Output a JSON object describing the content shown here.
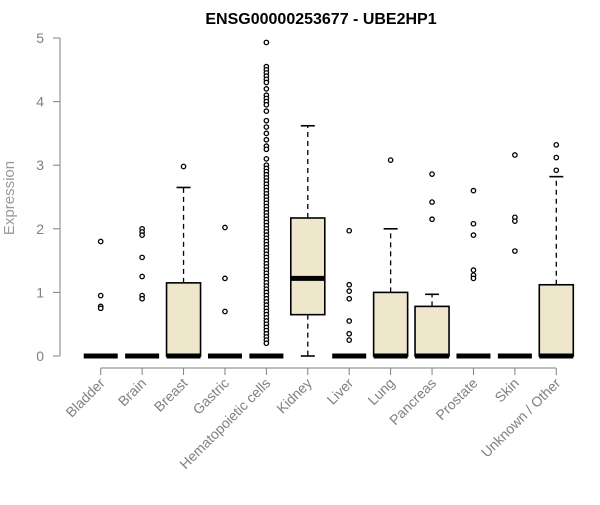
{
  "chart_data": {
    "type": "box",
    "title": "ENSG00000253677 - UBE2HP1",
    "xlabel": "",
    "ylabel": "Expression",
    "ylim": [
      0,
      5
    ],
    "yticks": [
      "0",
      "1",
      "2",
      "3",
      "4",
      "5"
    ],
    "grid": false,
    "legend": "none",
    "colors": {
      "box_fill": "#efe7cb",
      "stroke": "#000000",
      "axis": "#808080"
    },
    "categories": [
      "Bladder",
      "Brain",
      "Breast",
      "Gastric",
      "Hematopoietic cells",
      "Kidney",
      "Liver",
      "Lung",
      "Pancreas",
      "Prostate",
      "Skin",
      "Unknown / Other"
    ],
    "boxes": [
      {
        "q1": 0,
        "median": 0,
        "q3": 0,
        "whisker_low": 0,
        "whisker_high": 0,
        "outliers": [
          1.8,
          0.95,
          0.78,
          0.75
        ]
      },
      {
        "q1": 0,
        "median": 0,
        "q3": 0,
        "whisker_low": 0,
        "whisker_high": 0,
        "outliers": [
          2.0,
          1.95,
          1.9,
          1.55,
          1.25,
          0.95,
          0.9
        ]
      },
      {
        "q1": 0,
        "median": 0,
        "q3": 1.15,
        "whisker_low": 0,
        "whisker_high": 2.65,
        "outliers": [
          2.98
        ]
      },
      {
        "q1": 0,
        "median": 0,
        "q3": 0,
        "whisker_low": 0,
        "whisker_high": 0,
        "outliers": [
          2.02,
          1.22,
          0.7
        ]
      },
      {
        "q1": 0,
        "median": 0,
        "q3": 0,
        "whisker_low": 0,
        "whisker_high": 0,
        "outliers": [
          4.93,
          4.55,
          4.5,
          4.45,
          4.4,
          4.35,
          4.3,
          4.2,
          4.1,
          4.05,
          4.0,
          3.95,
          3.85,
          3.7,
          3.6,
          3.5,
          3.4,
          3.3,
          3.25,
          3.1,
          3.0,
          2.95,
          2.9,
          2.85,
          2.8,
          2.75,
          2.7,
          2.65,
          2.6,
          2.55,
          2.5,
          2.45,
          2.4,
          2.35,
          2.3,
          2.25,
          2.2,
          2.15,
          2.1,
          2.05,
          2.0,
          1.95,
          1.9,
          1.85,
          1.8,
          1.75,
          1.7,
          1.65,
          1.6,
          1.55,
          1.5,
          1.45,
          1.4,
          1.35,
          1.3,
          1.25,
          1.2,
          1.15,
          1.1,
          1.05,
          1.0,
          0.95,
          0.9,
          0.85,
          0.8,
          0.75,
          0.7,
          0.65,
          0.6,
          0.55,
          0.5,
          0.45,
          0.4,
          0.35,
          0.3,
          0.25,
          0.2
        ]
      },
      {
        "q1": 0.65,
        "median": 1.22,
        "q3": 2.17,
        "whisker_low": 0,
        "whisker_high": 3.62,
        "outliers": []
      },
      {
        "q1": 0,
        "median": 0,
        "q3": 0,
        "whisker_low": 0,
        "whisker_high": 0,
        "outliers": [
          1.97,
          1.12,
          1.02,
          0.9,
          0.55,
          0.35,
          0.25
        ]
      },
      {
        "q1": 0,
        "median": 0,
        "q3": 1.0,
        "whisker_low": 0,
        "whisker_high": 2.0,
        "outliers": [
          3.08
        ]
      },
      {
        "q1": 0,
        "median": 0,
        "q3": 0.78,
        "whisker_low": 0,
        "whisker_high": 0.97,
        "outliers": [
          2.86,
          2.42,
          2.15
        ]
      },
      {
        "q1": 0,
        "median": 0,
        "q3": 0,
        "whisker_low": 0,
        "whisker_high": 0,
        "outliers": [
          2.6,
          2.08,
          1.9,
          1.35,
          1.27,
          1.22
        ]
      },
      {
        "q1": 0,
        "median": 0,
        "q3": 0,
        "whisker_low": 0,
        "whisker_high": 0,
        "outliers": [
          3.16,
          2.18,
          2.12,
          1.65
        ]
      },
      {
        "q1": 0,
        "median": 0,
        "q3": 1.12,
        "whisker_low": 0,
        "whisker_high": 2.82,
        "outliers": [
          3.32,
          3.12,
          2.92
        ]
      }
    ]
  }
}
